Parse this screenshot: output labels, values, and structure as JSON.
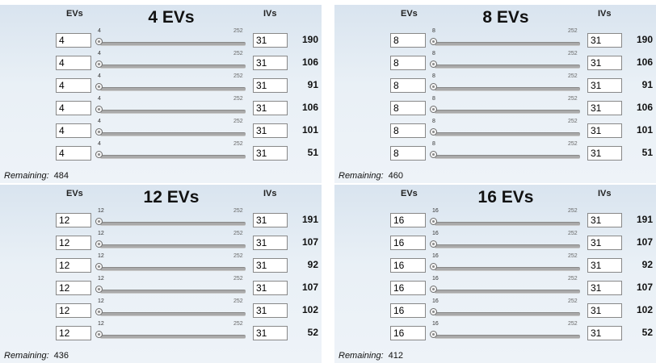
{
  "column_headers": {
    "evs": "EVs",
    "ivs": "IVs"
  },
  "slider_max_label": "252",
  "remaining_label": "Remaining:",
  "panels": [
    {
      "title": "4 EVs",
      "remaining": "484",
      "rows": [
        {
          "ev": "4",
          "min": "4",
          "iv": "31",
          "stat": "190"
        },
        {
          "ev": "4",
          "min": "4",
          "iv": "31",
          "stat": "106"
        },
        {
          "ev": "4",
          "min": "4",
          "iv": "31",
          "stat": "91"
        },
        {
          "ev": "4",
          "min": "4",
          "iv": "31",
          "stat": "106"
        },
        {
          "ev": "4",
          "min": "4",
          "iv": "31",
          "stat": "101"
        },
        {
          "ev": "4",
          "min": "4",
          "iv": "31",
          "stat": "51"
        }
      ]
    },
    {
      "title": "8 EVs",
      "remaining": "460",
      "rows": [
        {
          "ev": "8",
          "min": "8",
          "iv": "31",
          "stat": "190"
        },
        {
          "ev": "8",
          "min": "8",
          "iv": "31",
          "stat": "106"
        },
        {
          "ev": "8",
          "min": "8",
          "iv": "31",
          "stat": "91"
        },
        {
          "ev": "8",
          "min": "8",
          "iv": "31",
          "stat": "106"
        },
        {
          "ev": "8",
          "min": "8",
          "iv": "31",
          "stat": "101"
        },
        {
          "ev": "8",
          "min": "8",
          "iv": "31",
          "stat": "51"
        }
      ]
    },
    {
      "title": "12 EVs",
      "remaining": "436",
      "rows": [
        {
          "ev": "12",
          "min": "12",
          "iv": "31",
          "stat": "191"
        },
        {
          "ev": "12",
          "min": "12",
          "iv": "31",
          "stat": "107"
        },
        {
          "ev": "12",
          "min": "12",
          "iv": "31",
          "stat": "92"
        },
        {
          "ev": "12",
          "min": "12",
          "iv": "31",
          "stat": "107"
        },
        {
          "ev": "12",
          "min": "12",
          "iv": "31",
          "stat": "102"
        },
        {
          "ev": "12",
          "min": "12",
          "iv": "31",
          "stat": "52"
        }
      ]
    },
    {
      "title": "16 EVs",
      "remaining": "412",
      "rows": [
        {
          "ev": "16",
          "min": "16",
          "iv": "31",
          "stat": "191"
        },
        {
          "ev": "16",
          "min": "16",
          "iv": "31",
          "stat": "107"
        },
        {
          "ev": "16",
          "min": "16",
          "iv": "31",
          "stat": "92"
        },
        {
          "ev": "16",
          "min": "16",
          "iv": "31",
          "stat": "107"
        },
        {
          "ev": "16",
          "min": "16",
          "iv": "31",
          "stat": "102"
        },
        {
          "ev": "16",
          "min": "16",
          "iv": "31",
          "stat": "52"
        }
      ]
    }
  ]
}
